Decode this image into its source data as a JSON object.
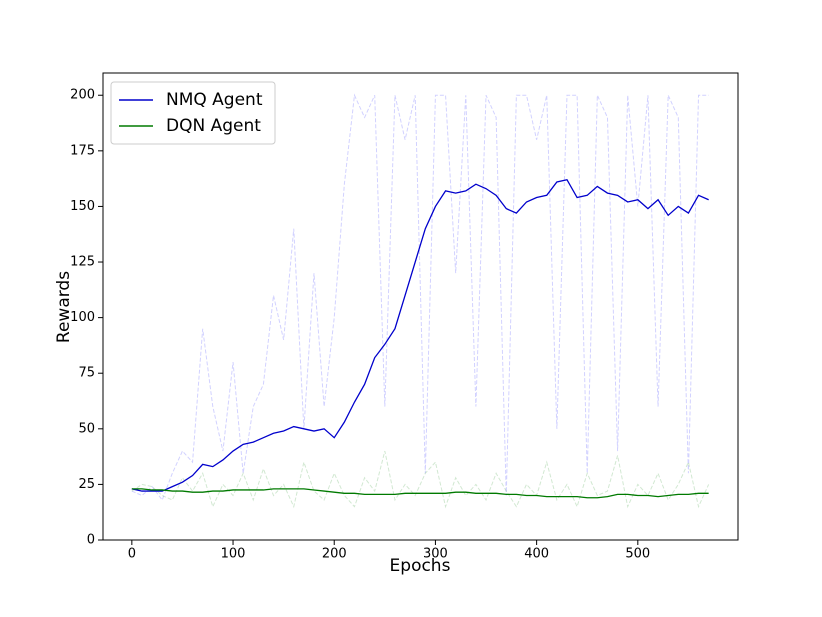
{
  "chart_data": {
    "type": "line",
    "x_label": "Epochs",
    "y_label": "Rewards",
    "xlim": [
      -28.5,
      599
    ],
    "ylim": [
      0,
      210
    ],
    "xticks": [
      0,
      100,
      200,
      300,
      400,
      500
    ],
    "yticks": [
      0,
      25,
      50,
      75,
      100,
      125,
      150,
      175,
      200
    ],
    "grid": false,
    "legend": "upper left",
    "x": [
      0,
      10,
      20,
      30,
      40,
      50,
      60,
      70,
      80,
      90,
      100,
      110,
      120,
      130,
      140,
      150,
      160,
      170,
      180,
      190,
      200,
      210,
      220,
      230,
      240,
      250,
      260,
      270,
      280,
      290,
      300,
      310,
      320,
      330,
      340,
      350,
      360,
      370,
      380,
      390,
      400,
      410,
      420,
      430,
      440,
      450,
      460,
      470,
      480,
      490,
      500,
      510,
      520,
      530,
      540,
      550,
      560,
      570
    ],
    "series": [
      {
        "color": "#0000ff",
        "linestyle": "dashed",
        "alpha": 0.18,
        "values": [
          22,
          20,
          24,
          18,
          30,
          40,
          35,
          95,
          60,
          40,
          80,
          30,
          60,
          70,
          110,
          90,
          140,
          50,
          120,
          60,
          100,
          160,
          200,
          190,
          200,
          60,
          200,
          180,
          200,
          30,
          200,
          200,
          120,
          200,
          60,
          200,
          190,
          20,
          200,
          200,
          180,
          200,
          50,
          200,
          200,
          30,
          200,
          190,
          40,
          200,
          150,
          200,
          60,
          200,
          190,
          30,
          200,
          200
        ]
      },
      {
        "color": "#008000",
        "linestyle": "dashed",
        "alpha": 0.18,
        "values": [
          22,
          25,
          24,
          20,
          18,
          28,
          22,
          30,
          15,
          25,
          20,
          30,
          18,
          32,
          20,
          25,
          15,
          35,
          22,
          18,
          30,
          20,
          15,
          28,
          22,
          40,
          18,
          25,
          20,
          30,
          35,
          15,
          28,
          20,
          25,
          18,
          30,
          22,
          15,
          25,
          20,
          35,
          18,
          25,
          15,
          30,
          20,
          22,
          38,
          15,
          25,
          20,
          30,
          18,
          25,
          35,
          15,
          25
        ]
      },
      {
        "name": "NMQ Agent",
        "color": "#0000cc",
        "linestyle": "solid",
        "alpha": 1,
        "values": [
          23,
          22,
          22,
          22,
          24,
          26,
          29,
          34,
          33,
          36,
          40,
          43,
          44,
          46,
          48,
          49,
          51,
          50,
          49,
          50,
          46,
          53,
          62,
          70,
          82,
          88,
          95,
          110,
          125,
          140,
          150,
          157,
          156,
          157,
          160,
          158,
          155,
          149,
          147,
          152,
          154,
          155,
          161,
          162,
          154,
          155,
          159,
          156,
          155,
          152,
          153,
          149,
          153,
          146,
          150,
          147,
          155,
          153
        ]
      },
      {
        "name": "DQN Agent",
        "color": "#007a00",
        "linestyle": "solid",
        "alpha": 1,
        "values": [
          23,
          23,
          22.5,
          22.5,
          22,
          22,
          21.5,
          21.5,
          22,
          22,
          22.5,
          22.5,
          22.5,
          22.5,
          23,
          23,
          23,
          23,
          22.5,
          22,
          21.5,
          21,
          21,
          20.5,
          20.5,
          20.5,
          20.5,
          21,
          21,
          21,
          21,
          21,
          21.5,
          21.5,
          21,
          21,
          21,
          20.5,
          20.5,
          20,
          20,
          19.5,
          19.5,
          19.5,
          19.5,
          19,
          19,
          19.5,
          20.5,
          20.5,
          20,
          20,
          19.5,
          20,
          20.5,
          20.5,
          21,
          21
        ]
      }
    ]
  }
}
